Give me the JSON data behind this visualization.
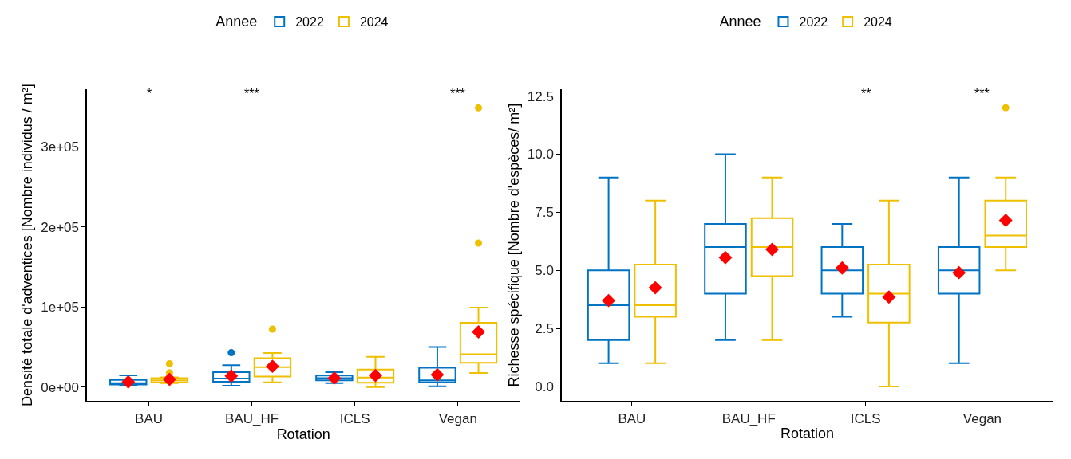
{
  "chart_data": [
    {
      "type": "box",
      "categories": [
        "BAU",
        "BAU_HF",
        "ICLS",
        "Vegan"
      ],
      "xlabel": "Rotation",
      "ylabel": "Densité totale d'adventices [Nombre individus / m²]",
      "legend_title": "Annee",
      "legend": "top",
      "ylim": [
        -17600,
        372000
      ],
      "yticks": [
        {
          "value": 0,
          "label": "0e+00"
        },
        {
          "value": 100000,
          "label": "1e+05"
        },
        {
          "value": 200000,
          "label": "2e+05"
        },
        {
          "value": 300000,
          "label": "3e+05"
        }
      ],
      "annotations": [
        "*",
        "***",
        "***"
      ],
      "series": [
        {
          "name": "2022",
          "color": "#0073c2",
          "boxes": [
            {
              "low": 2500,
              "q1": 3200,
              "median": 4800,
              "q3": 9000,
              "high": 14700,
              "mean": 6400
            },
            {
              "low": 1600,
              "q1": 6700,
              "median": 10500,
              "q3": 18500,
              "high": 27200,
              "mean": 13800,
              "outliers": [
                42900
              ]
            },
            {
              "low": 4800,
              "q1": 8300,
              "median": 11200,
              "q3": 14400,
              "high": 18500,
              "mean": 11200
            },
            {
              "low": 1000,
              "q1": 5800,
              "median": 8300,
              "q3": 24000,
              "high": 49900,
              "mean": 15400
            }
          ]
        },
        {
          "name": "2024",
          "color": "#efc000",
          "boxes": [
            {
              "low": 4800,
              "q1": 5800,
              "median": 8300,
              "q3": 11200,
              "high": 12000,
              "mean": 9600,
              "outliers": [
                17900,
                29100
              ]
            },
            {
              "low": 5800,
              "q1": 13100,
              "median": 24900,
              "q3": 36100,
              "high": 42500,
              "mean": 25900,
              "outliers": [
                72300
              ]
            },
            {
              "low": 0,
              "q1": 5400,
              "median": 11800,
              "q3": 21700,
              "high": 37700,
              "mean": 14400
            },
            {
              "low": 17600,
              "q1": 30400,
              "median": 40900,
              "q3": 80300,
              "high": 99100,
              "mean": 68800,
              "outliers": [
                179700,
                348600
              ]
            }
          ]
        }
      ]
    },
    {
      "type": "box",
      "categories": [
        "BAU",
        "BAU_HF",
        "ICLS",
        "Vegan"
      ],
      "xlabel": "Rotation",
      "ylabel": "Richesse spécifique [Nombre d'espèces/ m²]",
      "legend_title": "Annee",
      "legend": "top",
      "ylim": [
        -0.63,
        12.8
      ],
      "yticks": [
        {
          "value": 0,
          "label": "0.0"
        },
        {
          "value": 2.5,
          "label": "2.5"
        },
        {
          "value": 5,
          "label": "5.0"
        },
        {
          "value": 7.5,
          "label": "7.5"
        },
        {
          "value": 10,
          "label": "10.0"
        },
        {
          "value": 12.5,
          "label": "12.5"
        }
      ],
      "annotations": [
        "**",
        "***"
      ],
      "series": [
        {
          "name": "2022",
          "color": "#0073c2",
          "boxes": [
            {
              "low": 1,
              "q1": 2,
              "median": 3.5,
              "q3": 5,
              "high": 9,
              "mean": 3.7
            },
            {
              "low": 2,
              "q1": 4,
              "median": 6,
              "q3": 7,
              "high": 10,
              "mean": 5.55
            },
            {
              "low": 3,
              "q1": 4,
              "median": 5,
              "q3": 6,
              "high": 7,
              "mean": 5.1
            },
            {
              "low": 1,
              "q1": 4,
              "median": 5,
              "q3": 6,
              "high": 9,
              "mean": 4.9
            }
          ]
        },
        {
          "name": "2024",
          "color": "#efc000",
          "boxes": [
            {
              "low": 1,
              "q1": 3,
              "median": 3.5,
              "q3": 5.25,
              "high": 8,
              "mean": 4.25
            },
            {
              "low": 2,
              "q1": 4.75,
              "median": 6,
              "q3": 7.25,
              "high": 9,
              "mean": 5.9
            },
            {
              "low": 0,
              "q1": 2.75,
              "median": 4,
              "q3": 5.25,
              "high": 8,
              "mean": 3.85
            },
            {
              "low": 5,
              "q1": 6,
              "median": 6.5,
              "q3": 8,
              "high": 9,
              "mean": 7.15,
              "outliers": [
                12
              ]
            }
          ]
        }
      ]
    }
  ]
}
